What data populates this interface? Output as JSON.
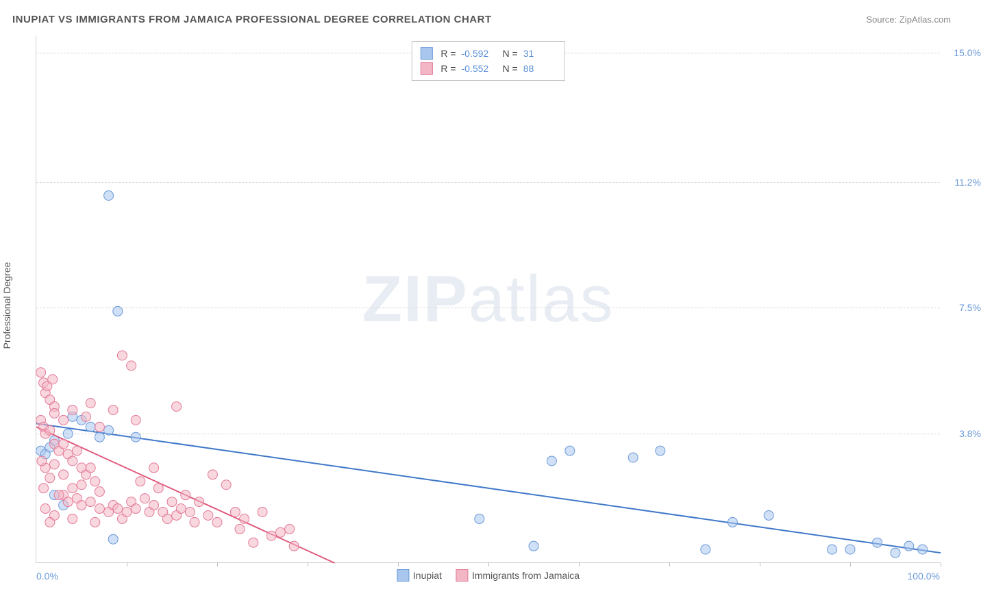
{
  "title": "INUPIAT VS IMMIGRANTS FROM JAMAICA PROFESSIONAL DEGREE CORRELATION CHART",
  "source": "Source: ZipAtlas.com",
  "watermark": {
    "bold": "ZIP",
    "rest": "atlas"
  },
  "yaxis": {
    "title": "Professional Degree"
  },
  "xaxis": {
    "min_label": "0.0%",
    "max_label": "100.0%"
  },
  "chart": {
    "type": "scatter",
    "xlim": [
      0,
      100
    ],
    "ylim": [
      0,
      15.5
    ],
    "yticks": [
      {
        "value": 3.8,
        "label": "3.8%"
      },
      {
        "value": 7.5,
        "label": "7.5%"
      },
      {
        "value": 11.2,
        "label": "11.2%"
      },
      {
        "value": 15.0,
        "label": "15.0%"
      }
    ],
    "xtick_positions": [
      10,
      20,
      30,
      40,
      50,
      60,
      70,
      80,
      90,
      100
    ],
    "background_color": "#ffffff",
    "grid_color": "#d8d8d8",
    "axis_color": "#d0d0d0",
    "marker_radius": 7,
    "marker_opacity": 0.55,
    "line_width": 2,
    "series": [
      {
        "key": "inupiat",
        "label": "Inupiat",
        "fill_color": "#a9c7ee",
        "stroke_color": "#6b99d8",
        "line_color": "#3f78c9",
        "R": "-0.592",
        "N": "31",
        "trend": {
          "x1": 0,
          "y1": 4.1,
          "x2": 100,
          "y2": 0.3
        },
        "points": [
          [
            8.0,
            10.8
          ],
          [
            9.0,
            7.4
          ],
          [
            0.5,
            3.3
          ],
          [
            1.0,
            3.2
          ],
          [
            1.5,
            3.4
          ],
          [
            2.0,
            3.6
          ],
          [
            3.5,
            3.8
          ],
          [
            4.0,
            4.3
          ],
          [
            5.0,
            4.2
          ],
          [
            6.0,
            4.0
          ],
          [
            7.0,
            3.7
          ],
          [
            8.0,
            3.9
          ],
          [
            11.0,
            3.7
          ],
          [
            2.0,
            2.0
          ],
          [
            3.0,
            1.7
          ],
          [
            8.5,
            0.7
          ],
          [
            49.0,
            1.3
          ],
          [
            55.0,
            0.5
          ],
          [
            57.0,
            3.0
          ],
          [
            59.0,
            3.3
          ],
          [
            66.0,
            3.1
          ],
          [
            69.0,
            3.3
          ],
          [
            74.0,
            0.4
          ],
          [
            77.0,
            1.2
          ],
          [
            81.0,
            1.4
          ],
          [
            88.0,
            0.4
          ],
          [
            90.0,
            0.4
          ],
          [
            93.0,
            0.6
          ],
          [
            95.0,
            0.3
          ],
          [
            96.5,
            0.5
          ],
          [
            98.0,
            0.4
          ]
        ]
      },
      {
        "key": "jamaica",
        "label": "Immigrants from Jamaica",
        "fill_color": "#f3b6c5",
        "stroke_color": "#e37a97",
        "line_color": "#e05a7d",
        "R": "-0.552",
        "N": "88",
        "trend": {
          "x1": 0,
          "y1": 4.0,
          "x2": 33,
          "y2": 0.0
        },
        "points": [
          [
            0.5,
            5.6
          ],
          [
            0.8,
            5.3
          ],
          [
            1.0,
            5.0
          ],
          [
            1.2,
            5.2
          ],
          [
            1.5,
            4.8
          ],
          [
            1.8,
            5.4
          ],
          [
            2.0,
            4.6
          ],
          [
            0.5,
            4.2
          ],
          [
            0.8,
            4.0
          ],
          [
            1.0,
            3.8
          ],
          [
            1.5,
            3.9
          ],
          [
            2.0,
            3.5
          ],
          [
            2.5,
            3.3
          ],
          [
            3.0,
            3.5
          ],
          [
            3.5,
            3.2
          ],
          [
            4.0,
            3.0
          ],
          [
            4.5,
            3.3
          ],
          [
            5.0,
            2.8
          ],
          [
            5.5,
            2.6
          ],
          [
            6.0,
            2.8
          ],
          [
            6.5,
            2.4
          ],
          [
            7.0,
            2.1
          ],
          [
            3.0,
            2.0
          ],
          [
            3.5,
            1.8
          ],
          [
            4.0,
            2.2
          ],
          [
            4.5,
            1.9
          ],
          [
            5.0,
            1.7
          ],
          [
            6.0,
            1.8
          ],
          [
            7.0,
            1.6
          ],
          [
            8.0,
            1.5
          ],
          [
            8.5,
            1.7
          ],
          [
            9.0,
            1.6
          ],
          [
            9.5,
            1.3
          ],
          [
            10.0,
            1.5
          ],
          [
            10.5,
            1.8
          ],
          [
            11.0,
            1.6
          ],
          [
            11.5,
            2.4
          ],
          [
            12.0,
            1.9
          ],
          [
            12.5,
            1.5
          ],
          [
            13.0,
            1.7
          ],
          [
            13.5,
            2.2
          ],
          [
            14.0,
            1.5
          ],
          [
            14.5,
            1.3
          ],
          [
            15.0,
            1.8
          ],
          [
            15.5,
            1.4
          ],
          [
            16.0,
            1.6
          ],
          [
            16.5,
            2.0
          ],
          [
            17.0,
            1.5
          ],
          [
            17.5,
            1.2
          ],
          [
            18.0,
            1.8
          ],
          [
            9.5,
            6.1
          ],
          [
            10.5,
            5.8
          ],
          [
            8.5,
            4.5
          ],
          [
            6.0,
            4.7
          ],
          [
            5.5,
            4.3
          ],
          [
            7.0,
            4.0
          ],
          [
            15.5,
            4.6
          ],
          [
            19.0,
            1.4
          ],
          [
            20.0,
            1.2
          ],
          [
            21.0,
            2.3
          ],
          [
            22.0,
            1.5
          ],
          [
            22.5,
            1.0
          ],
          [
            23.0,
            1.3
          ],
          [
            25.0,
            1.5
          ],
          [
            26.0,
            0.8
          ],
          [
            27.0,
            0.9
          ],
          [
            28.0,
            1.0
          ],
          [
            1.0,
            2.8
          ],
          [
            1.5,
            2.5
          ],
          [
            2.0,
            2.9
          ],
          [
            2.5,
            2.0
          ],
          [
            3.0,
            2.6
          ],
          [
            4.0,
            1.3
          ],
          [
            5.0,
            2.3
          ],
          [
            6.5,
            1.2
          ],
          [
            2.0,
            4.4
          ],
          [
            3.0,
            4.2
          ],
          [
            4.0,
            4.5
          ],
          [
            1.0,
            1.6
          ],
          [
            2.0,
            1.4
          ],
          [
            1.5,
            1.2
          ],
          [
            0.8,
            2.2
          ],
          [
            0.6,
            3.0
          ],
          [
            11.0,
            4.2
          ],
          [
            13.0,
            2.8
          ],
          [
            19.5,
            2.6
          ],
          [
            24.0,
            0.6
          ],
          [
            28.5,
            0.5
          ]
        ]
      }
    ]
  },
  "legend_top": {
    "r_label": "R =",
    "n_label": "N ="
  }
}
